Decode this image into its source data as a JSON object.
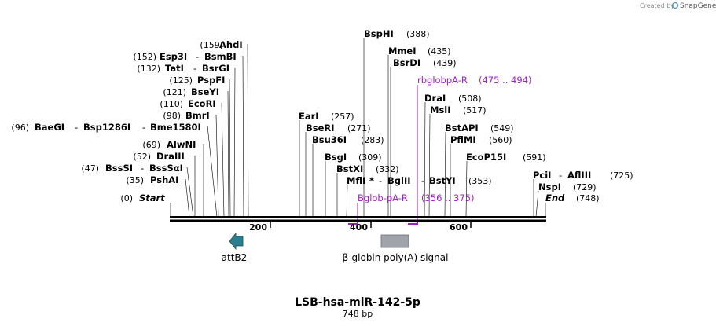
{
  "watermark": {
    "prefix": "Created by",
    "brand": "SnapGene"
  },
  "map": {
    "name": "LSB-hsa-miR-142-5p",
    "length_label": "748 bp",
    "length_bp": 748
  },
  "colors": {
    "primer": "#a020c8",
    "attb2": "#2a7f8f",
    "polyA": "#a0a4aa",
    "backbone": "#000000"
  },
  "sites": [
    {
      "name": "Start",
      "num": "(0)",
      "bp": 0,
      "italic": true
    },
    {
      "name": "PshAI",
      "num": "(35)",
      "bp": 35
    },
    {
      "name": "BssSI",
      "alt": "BssSαI",
      "num": "(47)",
      "bp": 47
    },
    {
      "name": "DraIII",
      "num": "(52)",
      "bp": 52
    },
    {
      "name": "AlwNI",
      "num": "(69)",
      "bp": 69
    },
    {
      "name": "BaeGI",
      "alt": "Bsp1286I",
      "alt2": "Bme1580I",
      "num": "(96)",
      "bp": 96
    },
    {
      "name": "BmrI",
      "num": "(98)",
      "bp": 98
    },
    {
      "name": "EcoRI",
      "num": "(110)",
      "bp": 110
    },
    {
      "name": "BseYI",
      "num": "(121)",
      "bp": 121
    },
    {
      "name": "PspFI",
      "num": "(125)",
      "bp": 125
    },
    {
      "name": "TatI",
      "alt": "BsrGI",
      "num": "(132)",
      "bp": 132
    },
    {
      "name": "Esp3I",
      "alt": "BsmBI",
      "num": "(152)",
      "bp": 152
    },
    {
      "name": "AhdI",
      "num": "(159)",
      "bp": 159
    },
    {
      "name": "EarI",
      "num": "(257)",
      "bp": 257
    },
    {
      "name": "BseRI",
      "num": "(271)",
      "bp": 271
    },
    {
      "name": "Bsu36I",
      "num": "(283)",
      "bp": 283
    },
    {
      "name": "BsgI",
      "num": "(309)",
      "bp": 309
    },
    {
      "name": "BstXI",
      "num": "(332)",
      "bp": 332
    },
    {
      "name": "MflI",
      "star": "*",
      "alt": "BglII",
      "num": "",
      "bp": 344
    },
    {
      "name": "BstYI",
      "num": "(353)",
      "bp": 353
    },
    {
      "name": "BspHI",
      "num": "(388)",
      "bp": 388
    },
    {
      "name": "MmeI",
      "num": "(435)",
      "bp": 435
    },
    {
      "name": "BsrDI",
      "num": "(439)",
      "bp": 439
    },
    {
      "name": "DraI",
      "num": "(508)",
      "bp": 508
    },
    {
      "name": "MslI",
      "num": "(517)",
      "bp": 517
    },
    {
      "name": "BstAPI",
      "num": "(549)",
      "bp": 549
    },
    {
      "name": "PflMI",
      "num": "(560)",
      "bp": 560
    },
    {
      "name": "EcoP15I",
      "num": "(591)",
      "bp": 591
    },
    {
      "name": "PciI",
      "alt": "AflIII",
      "num": "(725)",
      "bp": 725
    },
    {
      "name": "NspI",
      "num": "(729)",
      "bp": 729
    },
    {
      "name": "End",
      "num": "(748)",
      "bp": 748,
      "italic": true
    }
  ],
  "primers": [
    {
      "name": "rbglobpA-R",
      "range": "(475 .. 494)"
    },
    {
      "name": "Bglob-pA-R",
      "range": "(356 .. 375)"
    }
  ],
  "ticks": [
    "200",
    "400",
    "600"
  ],
  "features": [
    {
      "name": "attB2",
      "type": "arrow-left"
    },
    {
      "name": "β-globin poly(A) signal",
      "type": "box"
    }
  ]
}
